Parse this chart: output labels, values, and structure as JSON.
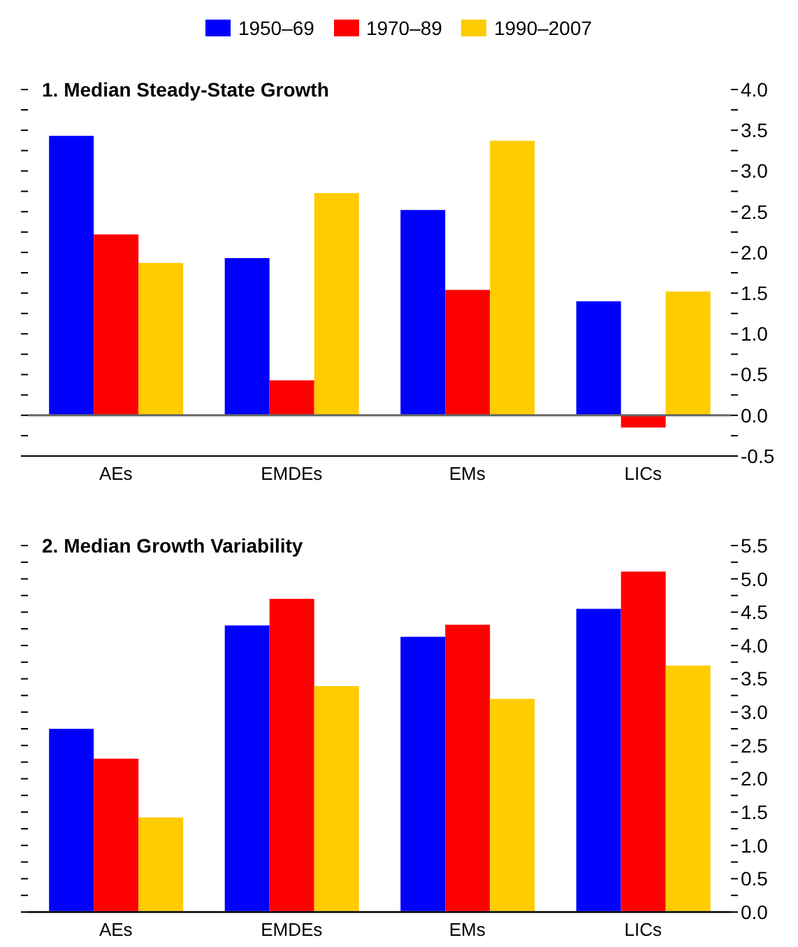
{
  "chart_data": [
    {
      "type": "bar",
      "title": "1. Median Steady-State Growth",
      "categories": [
        "AEs",
        "EMDEs",
        "EMs",
        "LICs"
      ],
      "legend": "top",
      "series": [
        {
          "name": "1950–69",
          "color": "#0000ff",
          "values": [
            3.43,
            1.93,
            2.52,
            1.4
          ]
        },
        {
          "name": "1970–89",
          "color": "#ff0000",
          "values": [
            2.22,
            0.43,
            1.54,
            -0.15
          ]
        },
        {
          "name": "1990–2007",
          "color": "#ffcc00",
          "values": [
            1.87,
            2.73,
            3.37,
            1.52
          ]
        }
      ],
      "ylim": [
        -0.5,
        4.0
      ],
      "yticks": [
        -0.5,
        {
          "value": -0.25,
          "label": null
        },
        {
          "value": 0,
          "label": "0.0"
        },
        {
          "value": 0.25,
          "label": null
        },
        0.5,
        {
          "value": 0.75,
          "label": null
        },
        {
          "value": 1,
          "label": "1.0"
        },
        {
          "value": 1.25,
          "label": null
        },
        1.5,
        {
          "value": 1.75,
          "label": null
        },
        {
          "value": 2,
          "label": "2.0"
        },
        {
          "value": 2.25,
          "label": null
        },
        2.5,
        {
          "value": 2.75,
          "label": null
        },
        {
          "value": 3,
          "label": "3.0"
        },
        {
          "value": 3.25,
          "label": null
        },
        3.5,
        {
          "value": 3.75,
          "label": null
        },
        {
          "value": 4,
          "label": "4.0"
        }
      ]
    },
    {
      "type": "bar",
      "title": "2. Median Growth Variability",
      "categories": [
        "AEs",
        "EMDEs",
        "EMs",
        "LICs"
      ],
      "series": [
        {
          "color": "#0000ff",
          "values": [
            2.75,
            4.3,
            4.13,
            4.55
          ]
        },
        {
          "color": "#ff0000",
          "values": [
            2.3,
            4.7,
            4.31,
            5.11
          ]
        },
        {
          "color": "#ffcc00",
          "values": [
            1.42,
            3.39,
            3.2,
            3.7
          ]
        }
      ],
      "ylim": [
        0,
        5.5
      ],
      "yticks": [
        {
          "value": 0,
          "label": "0.0"
        },
        {
          "value": 0.25,
          "label": null
        },
        0.5,
        {
          "value": 0.75,
          "label": null
        },
        {
          "value": 1,
          "label": "1.0"
        },
        {
          "value": 1.25,
          "label": null
        },
        1.5,
        {
          "value": 1.75,
          "label": null
        },
        {
          "value": 2,
          "label": "2.0"
        },
        {
          "value": 2.25,
          "label": null
        },
        2.5,
        {
          "value": 2.75,
          "label": null
        },
        {
          "value": 3,
          "label": "3.0"
        },
        {
          "value": 3.25,
          "label": null
        },
        3.5,
        {
          "value": 3.75,
          "label": null
        },
        {
          "value": 4,
          "label": "4.0"
        },
        {
          "value": 4.25,
          "label": null
        },
        4.5,
        {
          "value": 4.75,
          "label": null
        },
        {
          "value": 5,
          "label": "5.0"
        },
        {
          "value": 5.25,
          "label": null
        },
        5.5
      ]
    }
  ]
}
